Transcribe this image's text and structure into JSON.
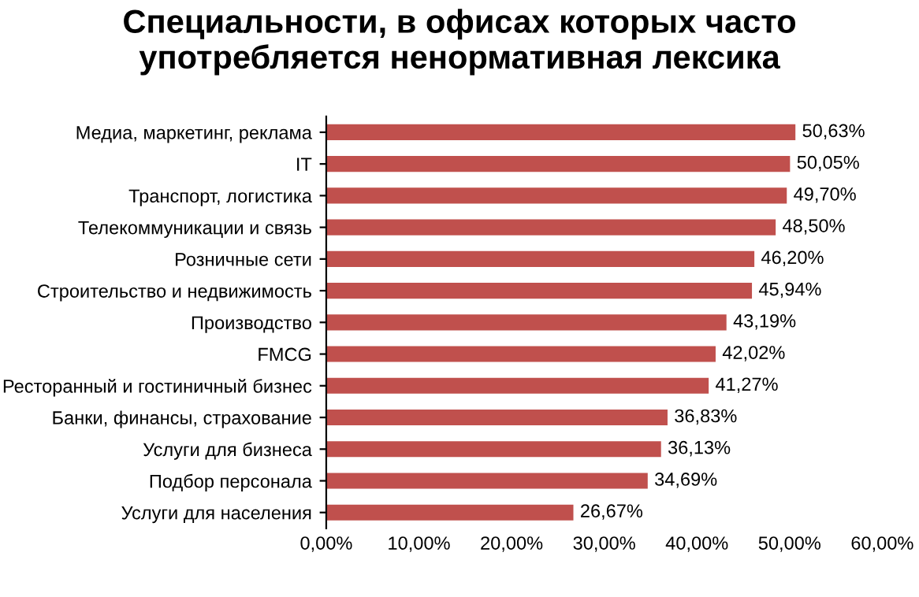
{
  "chart_data": {
    "type": "bar",
    "orientation": "horizontal",
    "title": "Специальности, в офисах которых часто\nупотребляется ненормативная лексика",
    "categories": [
      "Медиа, маркетинг, реклама",
      "IT",
      "Транспорт, логистика",
      "Телекоммуникации и связь",
      "Розничные сети",
      "Строительство и недвижимость",
      "Производство",
      "FMCG",
      "Ресторанный и гостиничный бизнес",
      "Банки, финансы, страхование",
      "Услуги для бизнеса",
      "Подбор персонала",
      "Услуги для населения"
    ],
    "values": [
      50.63,
      50.05,
      49.7,
      48.5,
      46.2,
      45.94,
      43.19,
      42.02,
      41.27,
      36.83,
      36.13,
      34.69,
      26.67
    ],
    "value_labels": [
      "50,63%",
      "50,05%",
      "49,70%",
      "48,50%",
      "46,20%",
      "45,94%",
      "43,19%",
      "42,02%",
      "41,27%",
      "36,83%",
      "36,13%",
      "34,69%",
      "26,67%"
    ],
    "color": "#c0504d",
    "xlim": [
      0,
      60
    ],
    "xticks": [
      {
        "value": 0,
        "label": "0,00%"
      },
      {
        "value": 10,
        "label": "10,00%"
      },
      {
        "value": 20,
        "label": "20,00%"
      },
      {
        "value": 30,
        "label": "30,00%"
      },
      {
        "value": 40,
        "label": "40,00%"
      },
      {
        "value": 50,
        "label": "50,00%"
      },
      {
        "value": 60,
        "label": "60,00%"
      }
    ],
    "grid": false,
    "legend": false
  }
}
